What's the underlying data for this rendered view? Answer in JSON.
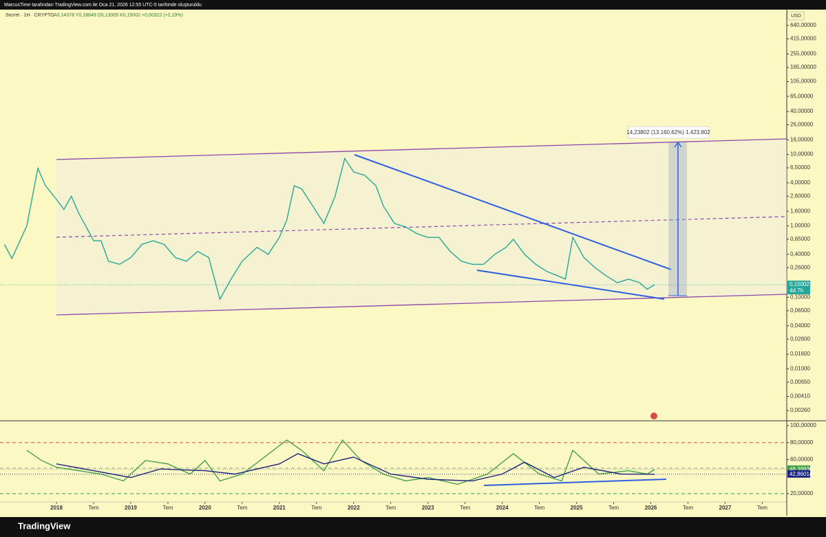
{
  "header": {
    "text": "MarcusTime tarafından TradingView.com ile Oca 21, 2026 12:55 UTC-5 tarihinde oluşturuldu"
  },
  "footer": {
    "brand": "TradingView"
  },
  "chart_data": [
    {
      "type": "line",
      "title": "Secret · 1H · CRYPTO",
      "legend_text": "A0,14378  Y0,18649  D0,13005  K0,15002  +0,00322 (+2,19%)",
      "currency": "USD",
      "log_scale": true,
      "color": "#26a69a",
      "annotation": "14,23802 (13.160,62%) 1.423.802",
      "last": {
        "value": 0.15002,
        "label": "0,15002"
      },
      "countdown": "4d 7h",
      "xlim": [
        2017.24,
        2027.83
      ],
      "ylim": [
        0.00187,
        1064
      ],
      "xticks": [
        2018,
        {
          "value": 2018.5,
          "label": "Tem"
        },
        2019,
        {
          "value": 2019.5,
          "label": "Tem"
        },
        2020,
        {
          "value": 2020.5,
          "label": "Tem"
        },
        2021,
        {
          "value": 2021.5,
          "label": "Tem"
        },
        2022,
        {
          "value": 2022.5,
          "label": "Tem"
        },
        2023,
        {
          "value": 2023.5,
          "label": "Tem"
        },
        2024,
        {
          "value": 2024.5,
          "label": "Tem"
        },
        2025,
        {
          "value": 2025.5,
          "label": "Tem"
        },
        2026,
        {
          "value": 2026.5,
          "label": "Tem"
        },
        2027,
        {
          "value": 2027.5,
          "label": "Tem"
        }
      ],
      "yticks": [
        {
          "value": 640,
          "label": "640,00000"
        },
        {
          "value": 415,
          "label": "415,00000"
        },
        {
          "value": 255,
          "label": "255,00000"
        },
        {
          "value": 165,
          "label": "165,00000"
        },
        {
          "value": 105,
          "label": "105,00000"
        },
        {
          "value": 65,
          "label": "65,00000"
        },
        {
          "value": 40,
          "label": "40,00000"
        },
        {
          "value": 26,
          "label": "26,00000"
        },
        {
          "value": 16,
          "label": "16,00000"
        },
        {
          "value": 10,
          "label": "10,00000"
        },
        {
          "value": 6.5,
          "label": "6,50000"
        },
        {
          "value": 4,
          "label": "4,00000"
        },
        {
          "value": 2.6,
          "label": "2,60000"
        },
        {
          "value": 1.6,
          "label": "1,60000"
        },
        {
          "value": 1,
          "label": "1,00000"
        },
        {
          "value": 0.65,
          "label": "0,65000"
        },
        {
          "value": 0.4,
          "label": "0,40000"
        },
        {
          "value": 0.26,
          "label": "0,26000"
        },
        {
          "value": 0.1,
          "label": "0,10000"
        },
        {
          "value": 0.065,
          "label": "0,06500"
        },
        {
          "value": 0.04,
          "label": "0,04000"
        },
        {
          "value": 0.026,
          "label": "0,02600"
        },
        {
          "value": 0.016,
          "label": "0,01600"
        },
        {
          "value": 0.01,
          "label": "0,01000"
        },
        {
          "value": 0.0065,
          "label": "0,00650"
        },
        {
          "value": 0.0041,
          "label": "0,00410"
        },
        {
          "value": 0.0026,
          "label": "0,00260"
        }
      ],
      "x": [
        2017.3,
        2017.4,
        2017.6,
        2017.75,
        2017.85,
        2018.0,
        2018.1,
        2018.2,
        2018.3,
        2018.4,
        2018.5,
        2018.6,
        2018.7,
        2018.85,
        2019.0,
        2019.15,
        2019.3,
        2019.45,
        2019.6,
        2019.75,
        2019.9,
        2020.05,
        2020.2,
        2020.35,
        2020.5,
        2020.7,
        2020.85,
        2021.0,
        2021.1,
        2021.2,
        2021.3,
        2021.45,
        2021.6,
        2021.75,
        2021.88,
        2022.0,
        2022.15,
        2022.3,
        2022.4,
        2022.55,
        2022.7,
        2022.85,
        2023.0,
        2023.15,
        2023.3,
        2023.45,
        2023.6,
        2023.75,
        2023.9,
        2024.05,
        2024.15,
        2024.3,
        2024.45,
        2024.6,
        2024.75,
        2024.85,
        2024.95,
        2025.1,
        2025.25,
        2025.4,
        2025.55,
        2025.7,
        2025.85,
        2025.95,
        2026.05
      ],
      "values": [
        0.55,
        0.35,
        1,
        6.4,
        3.7,
        2.35,
        1.7,
        2.6,
        1.5,
        0.97,
        0.62,
        0.62,
        0.32,
        0.29,
        0.36,
        0.55,
        0.62,
        0.55,
        0.36,
        0.32,
        0.44,
        0.36,
        0.094,
        0.18,
        0.32,
        0.5,
        0.4,
        0.69,
        1.2,
        3.65,
        3.3,
        1.9,
        1.08,
        2.6,
        8.8,
        5.7,
        5.1,
        3.65,
        1.9,
        1.08,
        0.97,
        0.78,
        0.69,
        0.69,
        0.44,
        0.32,
        0.29,
        0.29,
        0.4,
        0.5,
        0.65,
        0.4,
        0.29,
        0.23,
        0.2,
        0.18,
        0.69,
        0.36,
        0.26,
        0.2,
        0.16,
        0.18,
        0.16,
        0.13,
        0.15002
      ]
    },
    {
      "type": "line",
      "xlim": [
        2017.24,
        2027.83
      ],
      "ylim": [
        10.3,
        105.66
      ],
      "yticks": [
        {
          "value": 100,
          "label": "100,00000"
        },
        {
          "value": 80,
          "label": "80,00000"
        },
        {
          "value": 60,
          "label": "60,00000"
        },
        {
          "value": 20,
          "label": "20,00000"
        }
      ],
      "levels": [
        {
          "value": 80,
          "color": "#e04848"
        },
        {
          "value": 50,
          "color": "#9a9a9a"
        },
        {
          "value": 20,
          "color": "#2e9d4e"
        }
      ],
      "series": [
        {
          "color": "#43a047",
          "last": {
            "value": 48.3993,
            "label": "48,39930"
          },
          "x": [
            2017.6,
            2017.8,
            2018.0,
            2018.3,
            2018.6,
            2018.9,
            2019.2,
            2019.5,
            2019.8,
            2020.0,
            2020.2,
            2020.5,
            2020.8,
            2021.1,
            2021.3,
            2021.6,
            2021.85,
            2022.1,
            2022.4,
            2022.7,
            2023.0,
            2023.4,
            2023.8,
            2024.15,
            2024.5,
            2024.8,
            2024.95,
            2025.3,
            2025.7,
            2025.95,
            2026.05
          ],
          "values": [
            71,
            59,
            51,
            47,
            43,
            35,
            59,
            55,
            43,
            59,
            35,
            43,
            63,
            83,
            71,
            47,
            83,
            59,
            43,
            35,
            39,
            31,
            43,
            67,
            43,
            35,
            71,
            43,
            47,
            43,
            48.3993
          ]
        },
        {
          "color": "#1a237e",
          "last": {
            "value": 42.86014,
            "label": "42,86014"
          },
          "x": [
            2018.0,
            2018.5,
            2019.0,
            2019.4,
            2020.0,
            2020.4,
            2021.0,
            2021.25,
            2021.6,
            2022.0,
            2022.5,
            2023.0,
            2023.6,
            2024.0,
            2024.3,
            2024.7,
            2025.1,
            2025.6,
            2026.05
          ],
          "values": [
            55,
            47,
            39,
            49,
            47,
            43,
            55,
            67,
            55,
            63,
            43,
            37,
            35,
            43,
            57,
            39,
            51,
            43,
            42.86014
          ]
        }
      ]
    }
  ]
}
